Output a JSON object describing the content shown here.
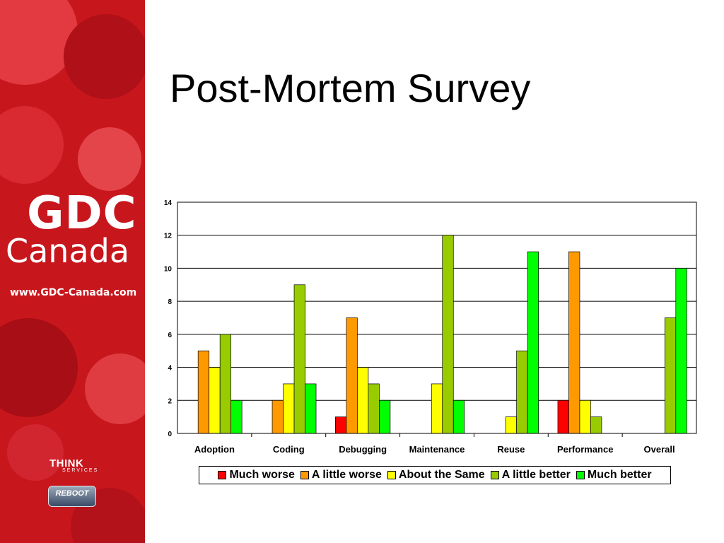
{
  "slide": {
    "title": "Post-Mortem Survey"
  },
  "sidebar": {
    "logo_top": "GDC",
    "logo_bottom": "Canada",
    "url": "www.GDC-Canada.com",
    "think_logo": "THINK",
    "think_sub": "SERVICES",
    "reboot_logo": "REBOOT",
    "colors": {
      "background": "#c8161d",
      "accent": "#e8313a"
    }
  },
  "chart_data": {
    "type": "bar",
    "title": "",
    "xlabel": "",
    "ylabel": "",
    "ylim": [
      0,
      14
    ],
    "yticks": [
      0,
      2,
      4,
      6,
      8,
      10,
      12,
      14
    ],
    "grid": true,
    "legend_position": "bottom",
    "categories": [
      "Adoption",
      "Coding",
      "Debugging",
      "Maintenance",
      "Reuse",
      "Performance",
      "Overall"
    ],
    "series": [
      {
        "name": "Much worse",
        "color": "#ff0000",
        "values": [
          0,
          0,
          1,
          0,
          0,
          2,
          0
        ]
      },
      {
        "name": "A little worse",
        "color": "#ff9900",
        "values": [
          5,
          2,
          7,
          0,
          0,
          11,
          0
        ]
      },
      {
        "name": "About the Same",
        "color": "#ffff00",
        "values": [
          4,
          3,
          4,
          3,
          1,
          2,
          0
        ]
      },
      {
        "name": "A little better",
        "color": "#99cc00",
        "values": [
          6,
          9,
          3,
          12,
          5,
          1,
          7
        ]
      },
      {
        "name": "Much better",
        "color": "#00ff00",
        "values": [
          2,
          3,
          2,
          2,
          11,
          0,
          10
        ]
      }
    ]
  }
}
